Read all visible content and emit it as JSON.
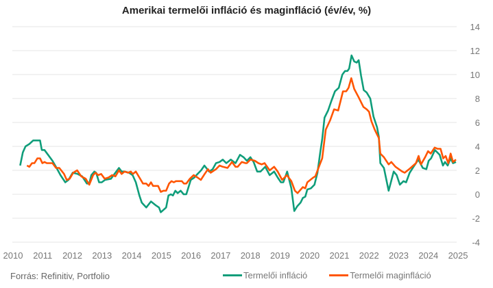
{
  "chart_data": {
    "type": "line",
    "title": "Amerikai termelői infláció és maginfláció (év/év, %)",
    "xlabel": "",
    "ylabel": "",
    "xlim": [
      2010,
      2025
    ],
    "ylim": [
      -4,
      14
    ],
    "x_ticks": [
      "2010",
      "2011",
      "2012",
      "2013",
      "2014",
      "2015",
      "2016",
      "2017",
      "2018",
      "2019",
      "2020",
      "2021",
      "2022",
      "2023",
      "2024",
      "2025"
    ],
    "y_ticks": [
      "14",
      "12",
      "10",
      "8",
      "6",
      "4",
      "2",
      "0",
      "-2",
      "-4"
    ],
    "y_tick_values": [
      14,
      12,
      10,
      8,
      6,
      4,
      2,
      0,
      -2,
      -4
    ],
    "grid": "horizontal",
    "y_axis_side": "right",
    "legend_position": "bottom-right",
    "series": [
      {
        "name": "Termelői infláció",
        "color": "#0f9d7a",
        "points": [
          [
            2010.24,
            2.4
          ],
          [
            2010.33,
            3.5
          ],
          [
            2010.42,
            4.0
          ],
          [
            2010.55,
            4.2
          ],
          [
            2010.68,
            4.5
          ],
          [
            2010.91,
            4.5
          ],
          [
            2010.97,
            3.7
          ],
          [
            2011.06,
            3.7
          ],
          [
            2011.18,
            3.3
          ],
          [
            2011.33,
            2.8
          ],
          [
            2011.49,
            2.1
          ],
          [
            2011.6,
            1.6
          ],
          [
            2011.76,
            1.0
          ],
          [
            2011.87,
            1.2
          ],
          [
            2012.01,
            1.8
          ],
          [
            2012.18,
            1.7
          ],
          [
            2012.33,
            1.5
          ],
          [
            2012.49,
            0.9
          ],
          [
            2012.57,
            0.9
          ],
          [
            2012.64,
            1.6
          ],
          [
            2012.74,
            1.9
          ],
          [
            2012.8,
            1.8
          ],
          [
            2012.9,
            1.0
          ],
          [
            2012.99,
            1.0
          ],
          [
            2013.1,
            1.2
          ],
          [
            2013.3,
            1.3
          ],
          [
            2013.39,
            1.6
          ],
          [
            2013.57,
            2.2
          ],
          [
            2013.66,
            1.9
          ],
          [
            2013.76,
            1.9
          ],
          [
            2013.91,
            1.8
          ],
          [
            2014.03,
            1.6
          ],
          [
            2014.14,
            1.0
          ],
          [
            2014.26,
            -0.1
          ],
          [
            2014.34,
            -0.7
          ],
          [
            2014.49,
            -1.1
          ],
          [
            2014.65,
            -0.6
          ],
          [
            2014.8,
            -0.9
          ],
          [
            2014.92,
            -1.1
          ],
          [
            2014.98,
            -1.5
          ],
          [
            2015.07,
            -1.3
          ],
          [
            2015.16,
            -1.1
          ],
          [
            2015.24,
            -0.1
          ],
          [
            2015.32,
            0.0
          ],
          [
            2015.39,
            -0.1
          ],
          [
            2015.47,
            0.3
          ],
          [
            2015.55,
            0.1
          ],
          [
            2015.65,
            0.3
          ],
          [
            2015.75,
            0.0
          ],
          [
            2015.84,
            0.0
          ],
          [
            2015.99,
            1.2
          ],
          [
            2016.11,
            1.4
          ],
          [
            2016.22,
            1.7
          ],
          [
            2016.34,
            2.0
          ],
          [
            2016.45,
            2.4
          ],
          [
            2016.61,
            1.9
          ],
          [
            2016.73,
            2.1
          ],
          [
            2016.84,
            2.6
          ],
          [
            2016.96,
            2.7
          ],
          [
            2017.07,
            2.9
          ],
          [
            2017.19,
            2.6
          ],
          [
            2017.34,
            2.9
          ],
          [
            2017.5,
            2.6
          ],
          [
            2017.65,
            3.3
          ],
          [
            2017.77,
            3.1
          ],
          [
            2017.88,
            2.8
          ],
          [
            2018.0,
            3.1
          ],
          [
            2018.11,
            2.7
          ],
          [
            2018.23,
            1.9
          ],
          [
            2018.34,
            1.9
          ],
          [
            2018.5,
            2.3
          ],
          [
            2018.65,
            1.6
          ],
          [
            2018.8,
            1.9
          ],
          [
            2018.92,
            1.4
          ],
          [
            2019.03,
            1.0
          ],
          [
            2019.11,
            1.0
          ],
          [
            2019.24,
            1.9
          ],
          [
            2019.38,
            0.5
          ],
          [
            2019.48,
            -1.4
          ],
          [
            2019.58,
            -1.0
          ],
          [
            2019.69,
            -0.7
          ],
          [
            2019.77,
            -0.3
          ],
          [
            2019.85,
            -0.2
          ],
          [
            2019.92,
            0.4
          ],
          [
            2020.04,
            0.5
          ],
          [
            2020.16,
            0.8
          ],
          [
            2020.26,
            1.8
          ],
          [
            2020.35,
            3.4
          ],
          [
            2020.42,
            4.6
          ],
          [
            2020.5,
            6.4
          ],
          [
            2020.62,
            7.0
          ],
          [
            2020.73,
            7.8
          ],
          [
            2020.85,
            8.6
          ],
          [
            2020.98,
            8.9
          ],
          [
            2021.1,
            10.0
          ],
          [
            2021.19,
            10.3
          ],
          [
            2021.27,
            10.3
          ],
          [
            2021.33,
            10.5
          ],
          [
            2021.41,
            11.6
          ],
          [
            2021.5,
            11.1
          ],
          [
            2021.58,
            11.0
          ],
          [
            2021.65,
            11.2
          ],
          [
            2021.73,
            9.9
          ],
          [
            2021.82,
            8.7
          ],
          [
            2021.92,
            8.5
          ],
          [
            2022.04,
            8.0
          ],
          [
            2022.15,
            6.5
          ],
          [
            2022.27,
            5.6
          ],
          [
            2022.33,
            4.8
          ],
          [
            2022.38,
            2.6
          ],
          [
            2022.5,
            2.2
          ],
          [
            2022.66,
            0.3
          ],
          [
            2022.83,
            1.9
          ],
          [
            2022.93,
            1.6
          ],
          [
            2023.04,
            0.8
          ],
          [
            2023.16,
            1.1
          ],
          [
            2023.25,
            1.0
          ],
          [
            2023.37,
            1.8
          ],
          [
            2023.5,
            2.3
          ],
          [
            2023.66,
            2.9
          ],
          [
            2023.81,
            2.2
          ],
          [
            2023.93,
            2.1
          ],
          [
            2024.01,
            2.8
          ],
          [
            2024.09,
            3.0
          ],
          [
            2024.22,
            3.7
          ],
          [
            2024.38,
            3.3
          ],
          [
            2024.49,
            2.4
          ],
          [
            2024.56,
            2.7
          ],
          [
            2024.65,
            2.4
          ],
          [
            2024.75,
            3.0
          ],
          [
            2024.83,
            2.6
          ],
          [
            2024.93,
            2.7
          ]
        ]
      },
      {
        "name": "Termelői maginfláció",
        "color": "#ff5500",
        "points": [
          [
            2010.47,
            2.4
          ],
          [
            2010.55,
            2.3
          ],
          [
            2010.64,
            2.6
          ],
          [
            2010.72,
            2.6
          ],
          [
            2010.82,
            3.0
          ],
          [
            2010.91,
            3.0
          ],
          [
            2010.99,
            2.6
          ],
          [
            2011.06,
            2.7
          ],
          [
            2011.14,
            2.6
          ],
          [
            2011.33,
            2.6
          ],
          [
            2011.45,
            2.2
          ],
          [
            2011.56,
            2.2
          ],
          [
            2011.72,
            1.7
          ],
          [
            2011.81,
            1.2
          ],
          [
            2011.91,
            1.3
          ],
          [
            2012.03,
            1.8
          ],
          [
            2012.16,
            2.0
          ],
          [
            2012.3,
            1.5
          ],
          [
            2012.45,
            1.3
          ],
          [
            2012.57,
            0.8
          ],
          [
            2012.7,
            1.6
          ],
          [
            2012.78,
            1.8
          ],
          [
            2012.87,
            1.6
          ],
          [
            2012.97,
            1.7
          ],
          [
            2013.09,
            1.3
          ],
          [
            2013.22,
            1.4
          ],
          [
            2013.34,
            1.6
          ],
          [
            2013.45,
            1.5
          ],
          [
            2013.57,
            2.0
          ],
          [
            2013.66,
            1.7
          ],
          [
            2013.76,
            1.9
          ],
          [
            2013.88,
            1.8
          ],
          [
            2013.97,
            1.9
          ],
          [
            2014.04,
            1.7
          ],
          [
            2014.14,
            1.9
          ],
          [
            2014.26,
            1.4
          ],
          [
            2014.38,
            0.9
          ],
          [
            2014.49,
            0.9
          ],
          [
            2014.57,
            0.7
          ],
          [
            2014.65,
            1.0
          ],
          [
            2014.72,
            0.7
          ],
          [
            2014.89,
            0.7
          ],
          [
            2014.98,
            0.2
          ],
          [
            2015.07,
            0.3
          ],
          [
            2015.16,
            0.3
          ],
          [
            2015.26,
            0.9
          ],
          [
            2015.34,
            1.1
          ],
          [
            2015.42,
            1.0
          ],
          [
            2015.49,
            1.1
          ],
          [
            2015.61,
            1.1
          ],
          [
            2015.69,
            1.1
          ],
          [
            2015.76,
            0.9
          ],
          [
            2015.84,
            0.9
          ],
          [
            2015.96,
            1.3
          ],
          [
            2016.09,
            1.6
          ],
          [
            2016.22,
            1.4
          ],
          [
            2016.33,
            1.2
          ],
          [
            2016.46,
            1.7
          ],
          [
            2016.57,
            2.1
          ],
          [
            2016.66,
            1.8
          ],
          [
            2016.84,
            2.1
          ],
          [
            2016.96,
            2.4
          ],
          [
            2017.07,
            2.3
          ],
          [
            2017.23,
            2.2
          ],
          [
            2017.38,
            2.7
          ],
          [
            2017.5,
            2.3
          ],
          [
            2017.57,
            2.3
          ],
          [
            2017.71,
            2.7
          ],
          [
            2017.84,
            2.6
          ],
          [
            2017.88,
            2.6
          ],
          [
            2018.0,
            2.9
          ],
          [
            2018.15,
            2.8
          ],
          [
            2018.27,
            2.6
          ],
          [
            2018.38,
            2.5
          ],
          [
            2018.48,
            2.6
          ],
          [
            2018.65,
            2.0
          ],
          [
            2018.8,
            2.3
          ],
          [
            2018.92,
            1.9
          ],
          [
            2019.07,
            1.2
          ],
          [
            2019.23,
            1.6
          ],
          [
            2019.38,
            1.1
          ],
          [
            2019.5,
            0.3
          ],
          [
            2019.59,
            0.1
          ],
          [
            2019.77,
            0.6
          ],
          [
            2019.85,
            0.5
          ],
          [
            2019.92,
            1.0
          ],
          [
            2020.12,
            1.4
          ],
          [
            2020.19,
            1.5
          ],
          [
            2020.31,
            2.3
          ],
          [
            2020.42,
            3.0
          ],
          [
            2020.54,
            5.4
          ],
          [
            2020.69,
            6.2
          ],
          [
            2020.82,
            7.1
          ],
          [
            2020.96,
            7.0
          ],
          [
            2021.12,
            8.6
          ],
          [
            2021.23,
            8.6
          ],
          [
            2021.31,
            8.9
          ],
          [
            2021.4,
            9.7
          ],
          [
            2021.5,
            8.8
          ],
          [
            2021.65,
            8.1
          ],
          [
            2021.81,
            7.3
          ],
          [
            2021.92,
            7.1
          ],
          [
            2022.0,
            6.9
          ],
          [
            2022.08,
            6.1
          ],
          [
            2022.19,
            5.4
          ],
          [
            2022.33,
            4.7
          ],
          [
            2022.38,
            3.4
          ],
          [
            2022.5,
            3.1
          ],
          [
            2022.66,
            2.5
          ],
          [
            2022.75,
            2.7
          ],
          [
            2022.89,
            2.3
          ],
          [
            2023.12,
            1.9
          ],
          [
            2023.2,
            1.8
          ],
          [
            2023.35,
            2.1
          ],
          [
            2023.58,
            2.6
          ],
          [
            2023.67,
            3.2
          ],
          [
            2023.75,
            2.5
          ],
          [
            2023.89,
            3.1
          ],
          [
            2023.99,
            3.6
          ],
          [
            2024.08,
            3.4
          ],
          [
            2024.21,
            3.9
          ],
          [
            2024.31,
            3.8
          ],
          [
            2024.41,
            3.8
          ],
          [
            2024.5,
            3.0
          ],
          [
            2024.58,
            3.2
          ],
          [
            2024.67,
            2.6
          ],
          [
            2024.75,
            3.4
          ],
          [
            2024.83,
            2.7
          ],
          [
            2024.93,
            2.9
          ]
        ]
      }
    ]
  },
  "source": "Forrás: Refinitiv, Portfolio"
}
